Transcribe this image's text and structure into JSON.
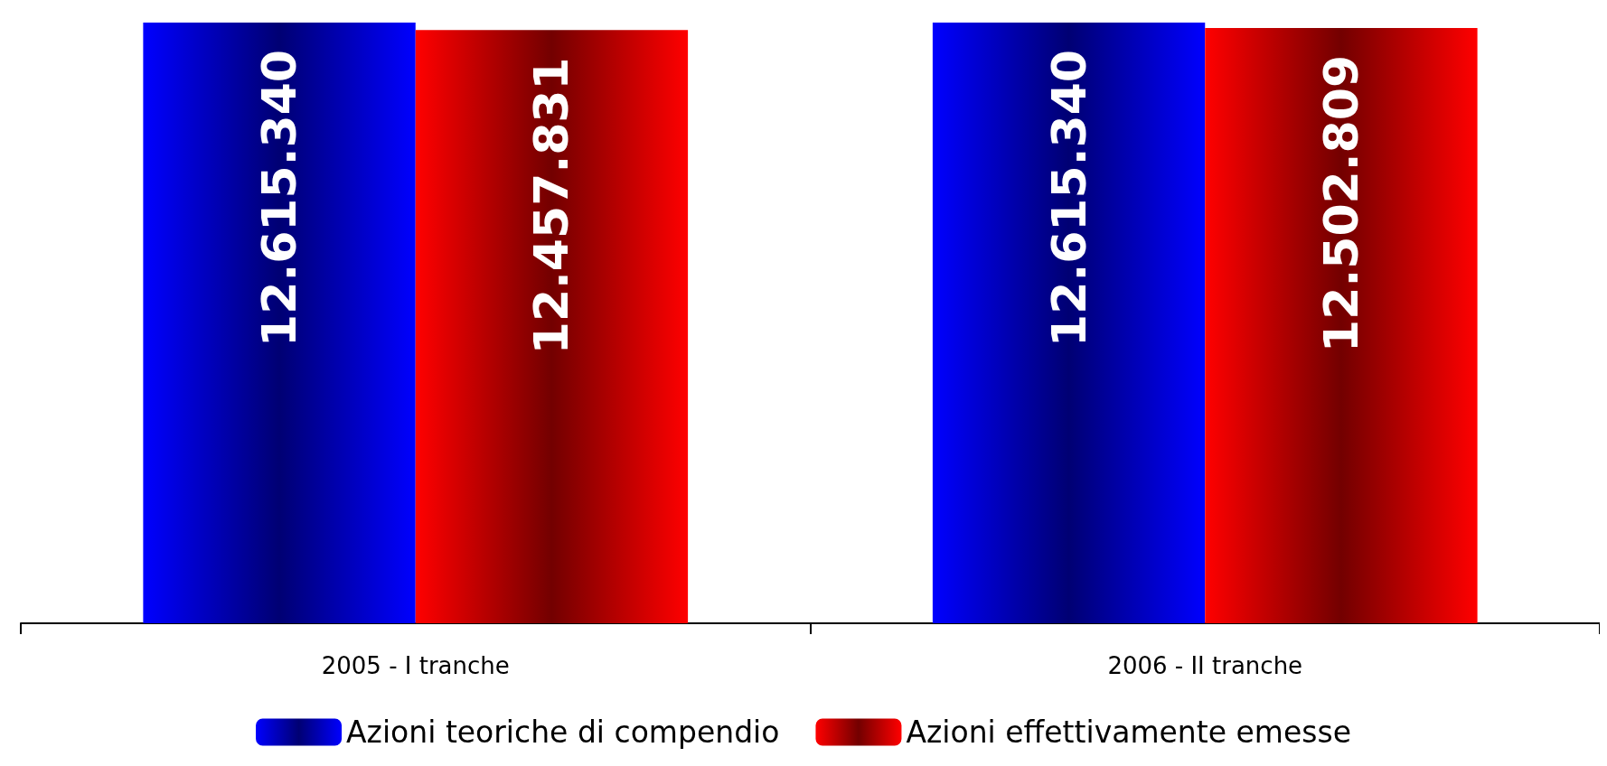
{
  "chart_data": {
    "type": "bar",
    "categories": [
      "2005 - I tranche",
      "2006 - II tranche"
    ],
    "series": [
      {
        "name": "Azioni teoriche di compendio",
        "color": "#0000ff",
        "values": [
          12615340,
          12615340
        ],
        "value_labels": [
          "12.615.340",
          "12.615.340"
        ]
      },
      {
        "name": "Azioni effettivamente emesse",
        "color": "#ff0000",
        "values": [
          12457831,
          12502809
        ],
        "value_labels": [
          "12.457.831",
          "12.502.809"
        ]
      }
    ],
    "legend": "bottom",
    "grid": false,
    "tick_labels": "x"
  }
}
